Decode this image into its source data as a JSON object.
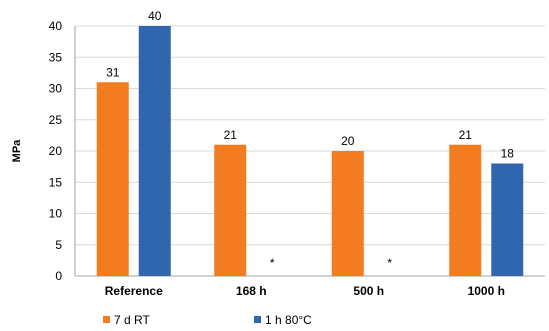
{
  "chart_data": {
    "type": "bar",
    "categories": [
      "Reference",
      "168 h",
      "500 h",
      "1000 h"
    ],
    "series": [
      {
        "name": "7 d RT",
        "color": "#f47c20",
        "values": [
          31,
          21,
          20,
          21
        ],
        "labels": [
          "31",
          "21",
          "20",
          "21"
        ]
      },
      {
        "name": "1 h 80°C",
        "color": "#2f66ae",
        "values": [
          40,
          null,
          null,
          18
        ],
        "labels": [
          "40",
          "*",
          "*",
          "18"
        ]
      }
    ],
    "ylabel": "MPa",
    "xlabel": "",
    "title": "",
    "ylim": [
      0,
      40
    ],
    "yticks": [
      0,
      5,
      10,
      15,
      20,
      25,
      30,
      35,
      40
    ],
    "grid": true,
    "legend_position": "bottom-left"
  }
}
